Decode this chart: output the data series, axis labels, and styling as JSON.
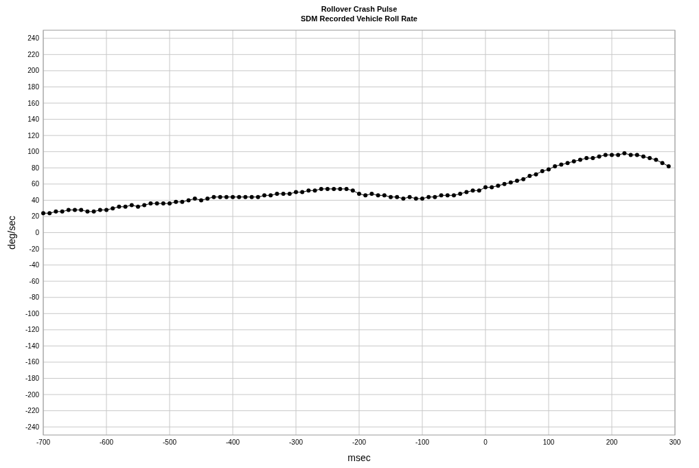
{
  "chart_data": {
    "type": "line",
    "title": "Rollover Crash Pulse",
    "subtitle": "SDM Recorded Vehicle Roll Rate",
    "xlabel": "msec",
    "ylabel": "deg/sec",
    "x": [
      -700,
      -690,
      -680,
      -670,
      -660,
      -650,
      -640,
      -630,
      -620,
      -610,
      -600,
      -590,
      -580,
      -570,
      -560,
      -550,
      -540,
      -530,
      -520,
      -510,
      -500,
      -490,
      -480,
      -470,
      -460,
      -450,
      -440,
      -430,
      -420,
      -410,
      -400,
      -390,
      -380,
      -370,
      -360,
      -350,
      -340,
      -330,
      -320,
      -310,
      -300,
      -290,
      -280,
      -270,
      -260,
      -250,
      -240,
      -230,
      -220,
      -210,
      -200,
      -190,
      -180,
      -170,
      -160,
      -150,
      -140,
      -130,
      -120,
      -110,
      -100,
      -90,
      -80,
      -70,
      -60,
      -50,
      -40,
      -30,
      -20,
      -10,
      0,
      10,
      20,
      30,
      40,
      50,
      60,
      70,
      80,
      90,
      100,
      110,
      120,
      130,
      140,
      150,
      160,
      170,
      180,
      190,
      200,
      210,
      220,
      230,
      240,
      250,
      260,
      270,
      280,
      290
    ],
    "series": [
      {
        "color": "#000000",
        "values": [
          24,
          24,
          26,
          26,
          28,
          28,
          28,
          26,
          26,
          28,
          28,
          30,
          32,
          32,
          34,
          32,
          34,
          36,
          36,
          36,
          36,
          38,
          38,
          40,
          42,
          40,
          42,
          44,
          44,
          44,
          44,
          44,
          44,
          44,
          44,
          46,
          46,
          48,
          48,
          48,
          50,
          50,
          52,
          52,
          54,
          54,
          54,
          54,
          54,
          52,
          48,
          46,
          48,
          46,
          46,
          44,
          44,
          42,
          44,
          42,
          42,
          44,
          44,
          46,
          46,
          46,
          48,
          50,
          52,
          52,
          56,
          56,
          58,
          60,
          62,
          64,
          66,
          70,
          72,
          76,
          78,
          82,
          84,
          86,
          88,
          90,
          92,
          92,
          94,
          96,
          96,
          96,
          98,
          96,
          96,
          94,
          92,
          90,
          86,
          82
        ]
      }
    ],
    "xlim": [
      -700,
      300
    ],
    "xticks": [
      -700,
      -600,
      -500,
      -400,
      -300,
      -200,
      -100,
      0,
      100,
      200,
      300
    ],
    "ylim": [
      -250,
      250
    ],
    "yticks": [
      -240,
      -220,
      -200,
      -180,
      -160,
      -140,
      -120,
      -100,
      -80,
      -60,
      -40,
      -20,
      0,
      20,
      40,
      60,
      80,
      100,
      120,
      140,
      160,
      180,
      200,
      220,
      240
    ],
    "grid": true,
    "marker": "circle",
    "line_style": "solid"
  }
}
